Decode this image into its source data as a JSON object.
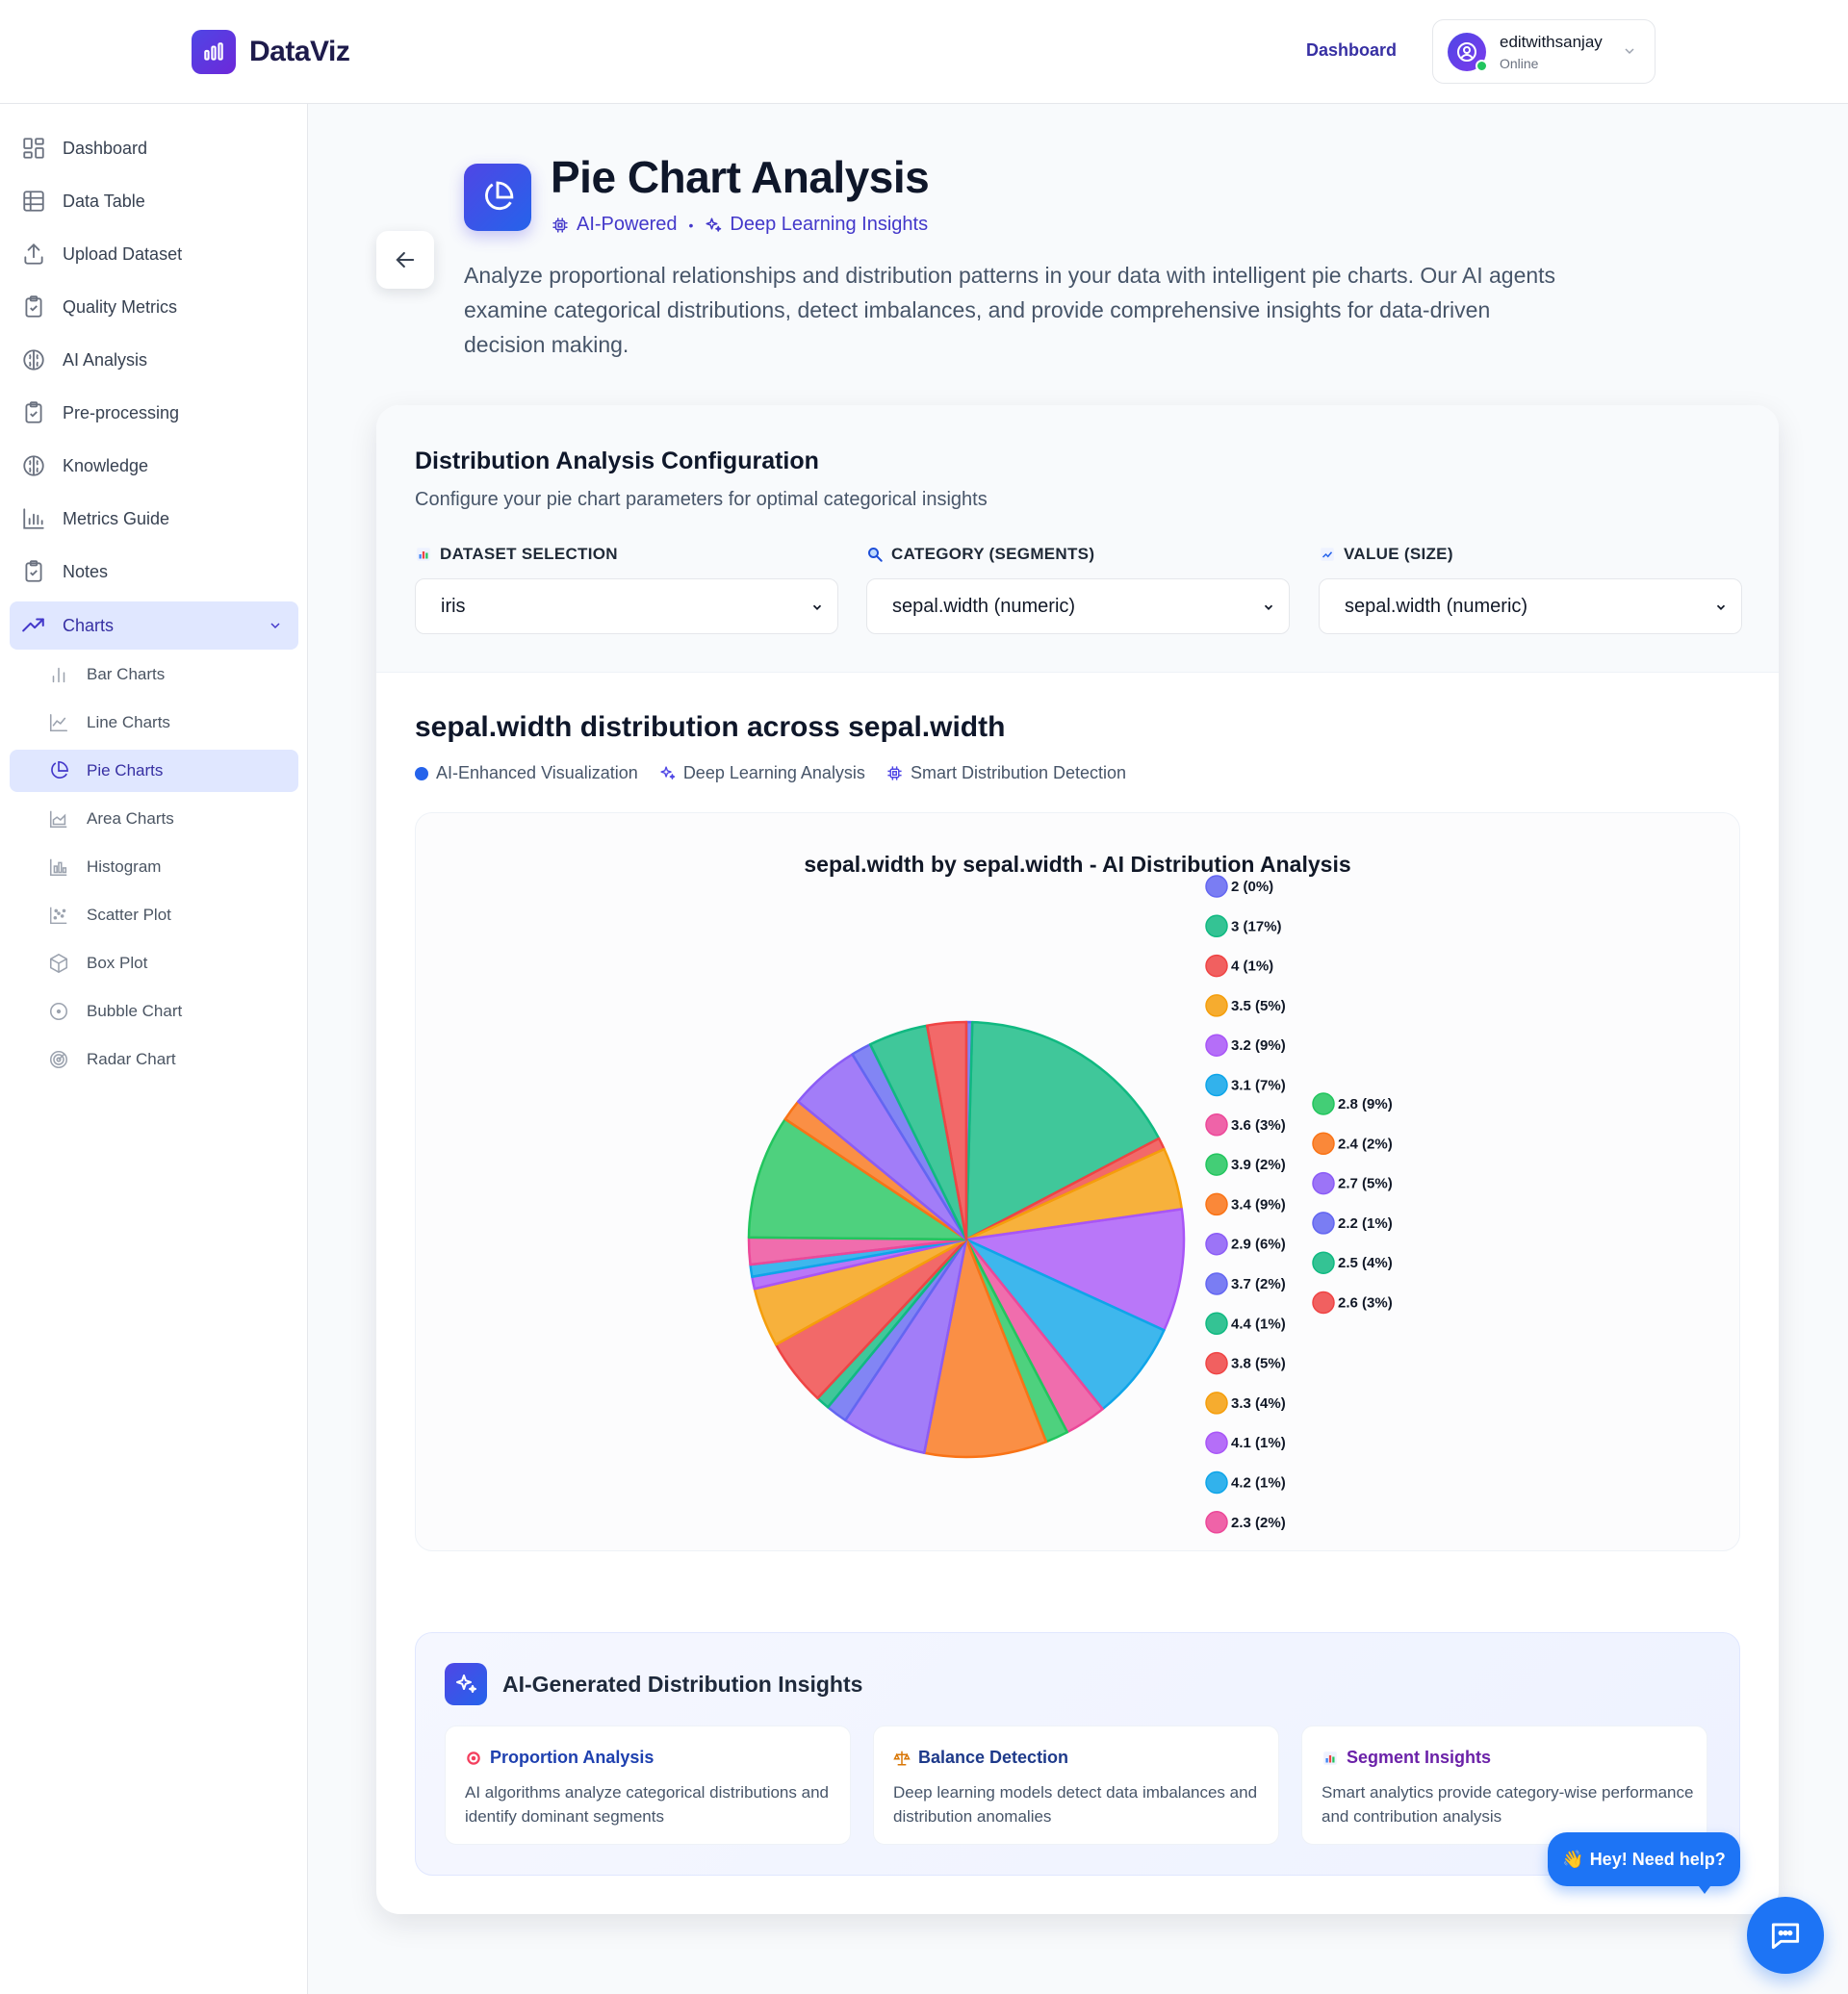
{
  "header": {
    "brand": "DataViz",
    "nav_link": "Dashboard",
    "user": {
      "name": "editwithsanjay",
      "status": "Online"
    }
  },
  "sidebar": {
    "items": [
      {
        "label": "Dashboard",
        "icon": "grid-icon"
      },
      {
        "label": "Data Table",
        "icon": "table-icon"
      },
      {
        "label": "Upload Dataset",
        "icon": "upload-icon"
      },
      {
        "label": "Quality Metrics",
        "icon": "clipboard-check-icon"
      },
      {
        "label": "AI Analysis",
        "icon": "brain-icon"
      },
      {
        "label": "Pre-processing",
        "icon": "clipboard-check-icon"
      },
      {
        "label": "Knowledge",
        "icon": "brain-icon"
      },
      {
        "label": "Metrics Guide",
        "icon": "bar-chart-icon"
      },
      {
        "label": "Notes",
        "icon": "clipboard-check-icon"
      },
      {
        "label": "Charts",
        "icon": "trending-up-icon"
      }
    ],
    "chart_items": [
      {
        "label": "Bar Charts",
        "icon": "bar-chart-icon"
      },
      {
        "label": "Line Charts",
        "icon": "line-chart-icon"
      },
      {
        "label": "Pie Charts",
        "icon": "pie-chart-icon"
      },
      {
        "label": "Area Charts",
        "icon": "area-chart-icon"
      },
      {
        "label": "Histogram",
        "icon": "histogram-icon"
      },
      {
        "label": "Scatter Plot",
        "icon": "scatter-icon"
      },
      {
        "label": "Box Plot",
        "icon": "box-icon"
      },
      {
        "label": "Bubble Chart",
        "icon": "bubble-icon"
      },
      {
        "label": "Radar Chart",
        "icon": "radar-icon"
      }
    ]
  },
  "page": {
    "title": "Pie Chart Analysis",
    "tag1": "AI-Powered",
    "tag_sep": "•",
    "tag2": "Deep Learning Insights",
    "description": "Analyze proportional relationships and distribution patterns in your data with intelligent pie charts. Our AI agents examine categorical distributions, detect imbalances, and provide comprehensive insights for data-driven decision making."
  },
  "config": {
    "title": "Distribution Analysis Configuration",
    "subtitle": "Configure your pie chart parameters for optimal categorical insights",
    "dataset_label": "DATASET SELECTION",
    "dataset_value": "iris",
    "category_label": "CATEGORY (SEGMENTS)",
    "category_value": "sepal.width (numeric)",
    "value_label": "VALUE (SIZE)",
    "value_value": "sepal.width (numeric)"
  },
  "chart_section": {
    "heading": "sepal.width distribution across sepal.width",
    "chip1": "AI-Enhanced Visualization",
    "chip2": "Deep Learning Analysis",
    "chip3": "Smart Distribution Detection"
  },
  "chart_data": {
    "type": "pie",
    "title": "sepal.width by sepal.width - AI Distribution Analysis",
    "legend_position": "right",
    "slices": [
      {
        "label": "2 (0%)",
        "value": 0.44,
        "color": "#6366f1"
      },
      {
        "label": "3 (17%)",
        "value": 16.9,
        "color": "#10b981"
      },
      {
        "label": "4 (1%)",
        "value": 0.87,
        "color": "#ef4444"
      },
      {
        "label": "3.5 (5%)",
        "value": 4.6,
        "color": "#f59e0b"
      },
      {
        "label": "3.2 (9%)",
        "value": 9.1,
        "color": "#a855f7"
      },
      {
        "label": "3.1 (7%)",
        "value": 7.4,
        "color": "#0ea5e9"
      },
      {
        "label": "3.6 (3%)",
        "value": 3.1,
        "color": "#ec4899"
      },
      {
        "label": "3.9 (2%)",
        "value": 1.7,
        "color": "#22c55e"
      },
      {
        "label": "3.4 (9%)",
        "value": 9.1,
        "color": "#f97316"
      },
      {
        "label": "2.9 (6%)",
        "value": 6.3,
        "color": "#8b5cf6"
      },
      {
        "label": "3.7 (2%)",
        "value": 1.6,
        "color": "#6366f1"
      },
      {
        "label": "4.4 (1%)",
        "value": 1.0,
        "color": "#10b981"
      },
      {
        "label": "3.8 (5%)",
        "value": 5.0,
        "color": "#ef4444"
      },
      {
        "label": "3.3 (4%)",
        "value": 4.4,
        "color": "#f59e0b"
      },
      {
        "label": "4.1 (1%)",
        "value": 0.9,
        "color": "#a855f7"
      },
      {
        "label": "4.2 (1%)",
        "value": 0.9,
        "color": "#0ea5e9"
      },
      {
        "label": "2.3 (2%)",
        "value": 2.0,
        "color": "#ec4899"
      },
      {
        "label": "2.8 (9%)",
        "value": 9.2,
        "color": "#22c55e"
      },
      {
        "label": "2.4 (2%)",
        "value": 1.6,
        "color": "#f97316"
      },
      {
        "label": "2.7 (5%)",
        "value": 5.3,
        "color": "#8b5cf6"
      },
      {
        "label": "2.2 (1%)",
        "value": 1.5,
        "color": "#6366f1"
      },
      {
        "label": "2.5 (4%)",
        "value": 4.4,
        "color": "#10b981"
      },
      {
        "label": "2.6 (3%)",
        "value": 2.9,
        "color": "#ef4444"
      }
    ]
  },
  "insights": {
    "title": "AI-Generated Distribution Insights",
    "cards": [
      {
        "title": "Proportion Analysis",
        "text": "AI algorithms analyze categorical distributions and identify dominant segments",
        "color": "#1e40af"
      },
      {
        "title": "Balance Detection",
        "text": "Deep learning models detect data imbalances and distribution anomalies",
        "color": "#1e3a8a"
      },
      {
        "title": "Segment Insights",
        "text": "Smart analytics provide category-wise performance and contribution analysis",
        "color": "#6b21a8"
      }
    ]
  },
  "help": {
    "bubble": "Hey! Need help?"
  }
}
